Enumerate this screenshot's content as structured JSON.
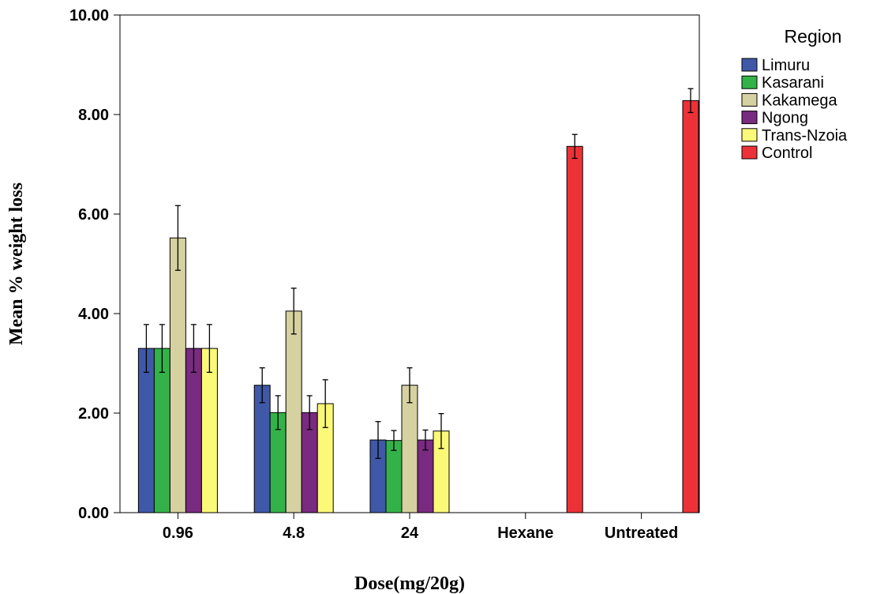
{
  "chart_data": {
    "type": "bar",
    "xlabel": "Dose(mg/20g)",
    "ylabel": "Mean % weight loss",
    "ylim": [
      0,
      10
    ],
    "yticks": [
      "0.00",
      "2.00",
      "4.00",
      "6.00",
      "8.00",
      "10.00"
    ],
    "categories": [
      "0.96",
      "4.8",
      "24",
      "Hexane",
      "Untreated"
    ],
    "legend": {
      "title": "Region",
      "placement": "right"
    },
    "grid": false,
    "series": [
      {
        "name": "Limuru",
        "color": "#3f58a8",
        "values": [
          3.3,
          2.56,
          1.46,
          null,
          null
        ],
        "err": [
          0.48,
          0.35,
          0.37,
          null,
          null
        ]
      },
      {
        "name": "Kasarani",
        "color": "#34b24a",
        "values": [
          3.3,
          2.01,
          1.45,
          null,
          null
        ],
        "err": [
          0.48,
          0.34,
          0.2,
          null,
          null
        ]
      },
      {
        "name": "Kakamega",
        "color": "#d5d1a1",
        "values": [
          5.52,
          4.05,
          2.56,
          null,
          null
        ],
        "err": [
          0.65,
          0.46,
          0.35,
          null,
          null
        ]
      },
      {
        "name": "Ngong",
        "color": "#782b80",
        "values": [
          3.3,
          2.01,
          1.46,
          null,
          null
        ],
        "err": [
          0.48,
          0.34,
          0.2,
          null,
          null
        ]
      },
      {
        "name": "Trans-Nzoia",
        "color": "#fbf978",
        "values": [
          3.3,
          2.19,
          1.64,
          null,
          null
        ],
        "err": [
          0.48,
          0.48,
          0.35,
          null,
          null
        ]
      },
      {
        "name": "Control",
        "color": "#ec3237",
        "values": [
          null,
          null,
          null,
          7.36,
          8.28
        ],
        "err": [
          null,
          null,
          null,
          0.24,
          0.24
        ]
      }
    ]
  }
}
